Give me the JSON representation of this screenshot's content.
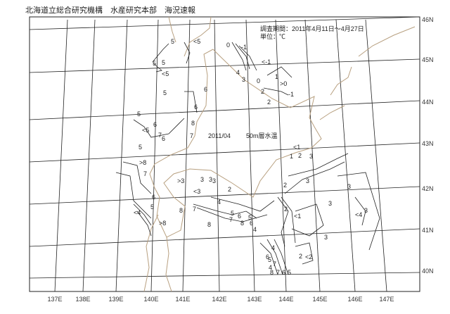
{
  "header": {
    "title": "北海道立総合研究機構　水産研究本部　海況速報"
  },
  "info": {
    "period": "調査期間：2011年4月11日～4月27日",
    "unit": "単位：℃"
  },
  "map": {
    "date": "2011/04",
    "layer": "50m層水温",
    "lat_labels": [
      "46N",
      "45N",
      "44N",
      "43N",
      "42N",
      "41N",
      "40N"
    ],
    "lon_labels": [
      "137E",
      "138E",
      "139E",
      "140E",
      "141E",
      "142E",
      "143E",
      "144E",
      "145E",
      "146E",
      "147E"
    ],
    "contour_labels": [
      "5",
      "5",
      "<5",
      "5",
      "<5",
      "5",
      "6",
      "6",
      "5",
      "6",
      "<5",
      "8",
      "7",
      "7",
      "5",
      "6",
      ">8",
      "7",
      "6",
      "5",
      "<4",
      "8",
      ">8",
      ">3",
      "<3",
      "3",
      "3",
      "3",
      "2",
      "7",
      "8",
      "4",
      "5",
      "6",
      "7",
      "8",
      "5",
      "6",
      "4",
      "2",
      "3",
      "<1",
      "2",
      "3",
      "3",
      "<4",
      "3",
      "3",
      "4",
      "0",
      "-1",
      "<-1",
      "4",
      "3",
      "0",
      "1",
      ">0",
      "2",
      "-1",
      "2",
      "<1",
      "1",
      "2",
      "3",
      "2",
      "<2",
      "8",
      "7",
      "6",
      "5",
      "4",
      "5",
      "6",
      "7"
    ],
    "colors": {
      "coast": "#b8a080",
      "grid": "#222222",
      "contour": "#222222"
    }
  }
}
